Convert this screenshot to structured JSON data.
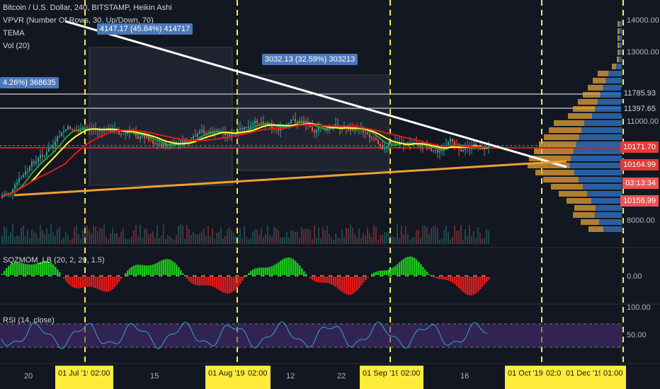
{
  "legend": {
    "main_title": "Bitcoin / U.S. Dollar, 240, BITSTAMP, Heikin Ashi",
    "vpvr": "VPVR (Number Of Rows, 30, Up/Down, 70)",
    "tema": "TEMA",
    "vol": "Vol (20)",
    "sqzmom": "SQZMOM_LB (20, 2, 20, 1.5)",
    "rsi": "RSI (14, close)"
  },
  "measure_tags": [
    {
      "text": "4147.17 (45.84%) 414717"
    },
    {
      "text": "3032.13 (32.59%) 303213"
    },
    {
      "text": "4.26%) 368635"
    }
  ],
  "price_axis": {
    "labels": [
      "14000.00",
      "13000.00",
      "11785.93",
      "11397.65",
      "11000.00",
      "10171.70",
      "10164.99",
      "03:13:34",
      "10156.99",
      "8000.00"
    ],
    "sqz_labels": [
      "0.00"
    ],
    "rsi_labels": [
      "100.00",
      "50.00"
    ]
  },
  "time_axis": {
    "labels": [
      "20",
      "01 Jul '19",
      "02:00",
      "15",
      "01 Aug '19",
      "02:00",
      "12",
      "22",
      "01 Sep '19",
      "02:00",
      "16",
      "01 Oct '19",
      "02:0",
      "01 Dec '19",
      "01:00"
    ]
  },
  "colors": {
    "background": "#131722",
    "up": "#26a69a",
    "down": "#ef5350",
    "ema_green": "#2e9a3a",
    "ema_yellow": "#ffff3b",
    "ema_red": "#e01919",
    "trend_white": "#ffffff",
    "trend_orange": "#f0a030",
    "vpvr_blue": "#2f6bb5",
    "vpvr_orange": "#e6a13a",
    "session_line": "#ffeb3b",
    "rsi_line": "#3aa0d0",
    "rsi_band": "#4b2f7a",
    "tag_blue": "#4a78b8",
    "tag_red": "#e53935",
    "tag_red_light": "#ef5350"
  }
}
